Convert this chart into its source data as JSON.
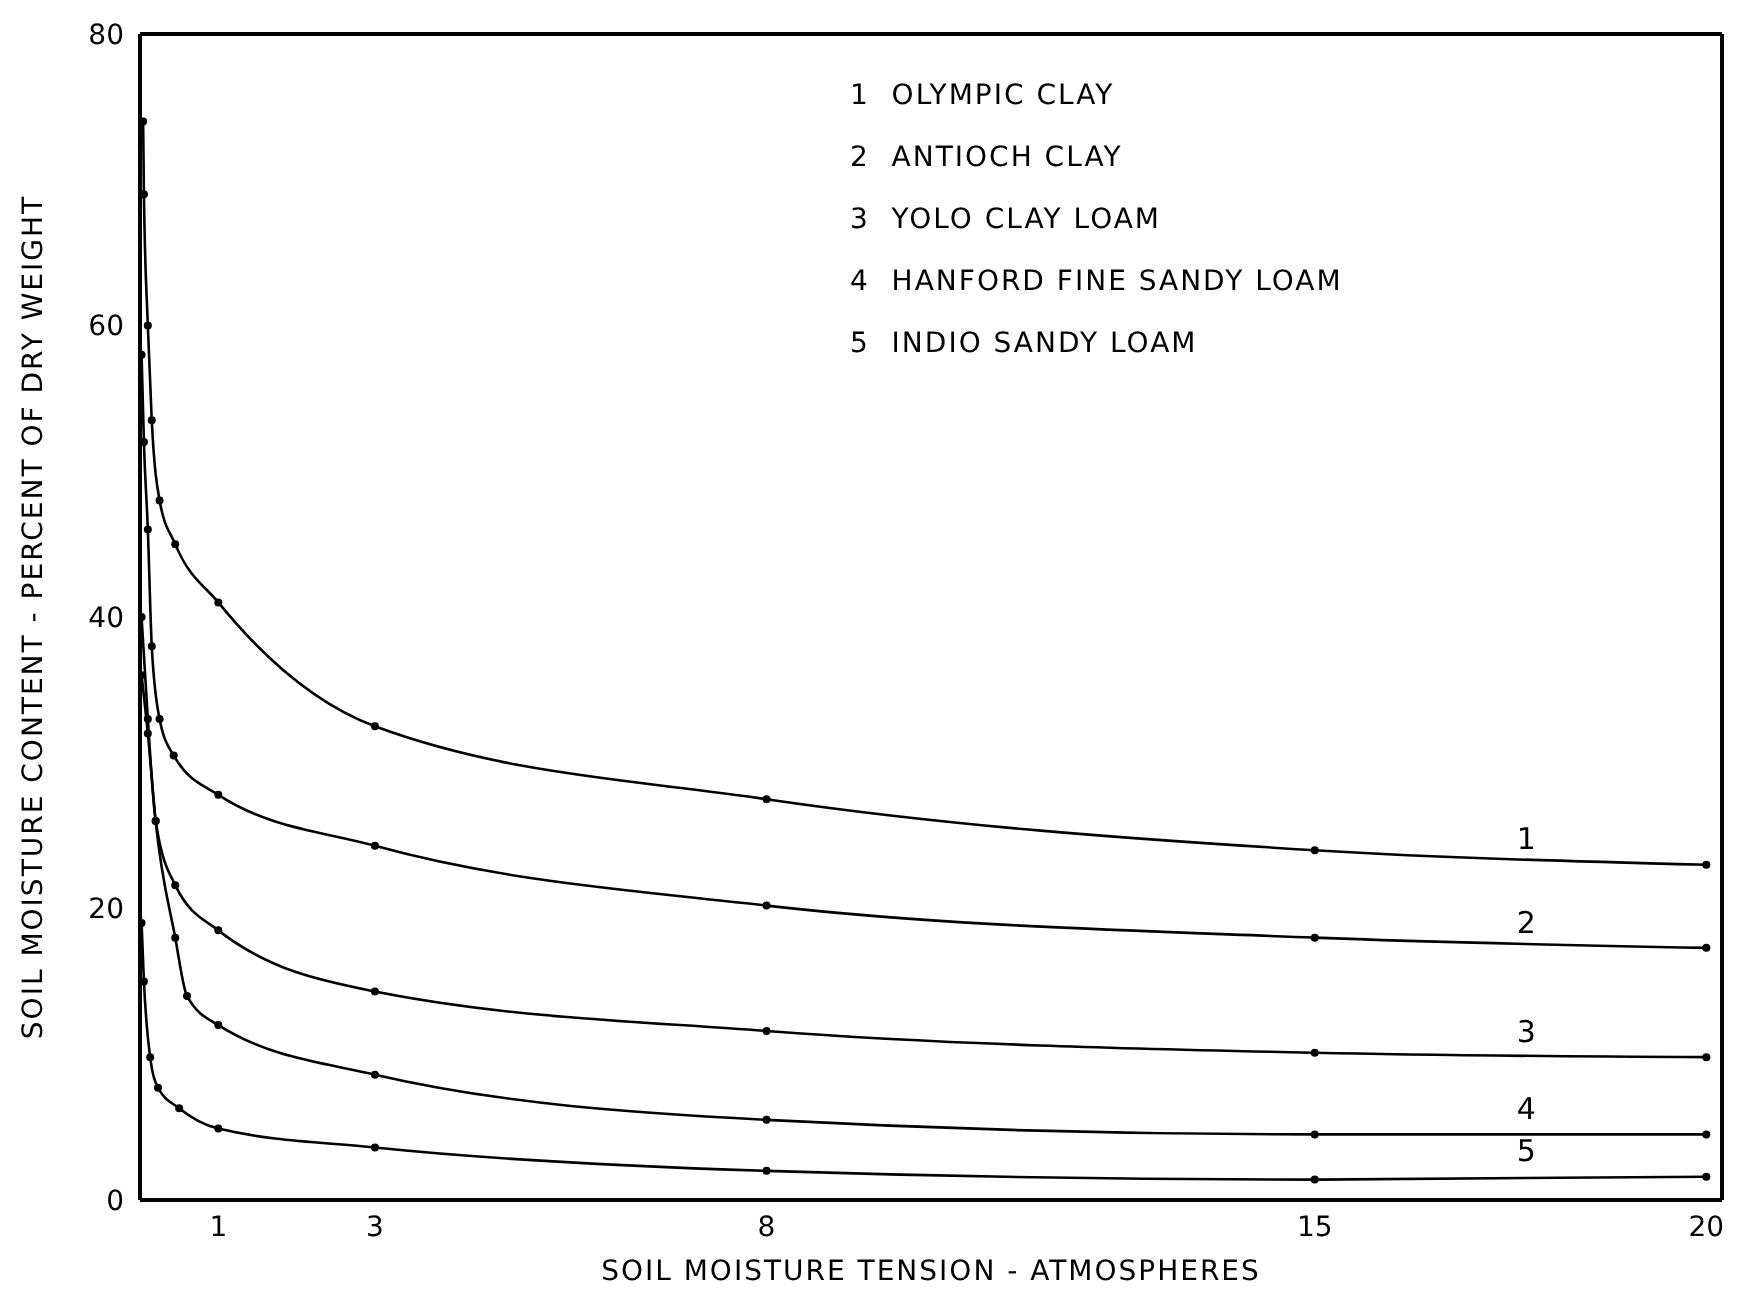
{
  "chart_data": {
    "type": "line",
    "xlabel": "SOIL MOISTURE TENSION - ATMOSPHERES",
    "ylabel": "SOIL MOISTURE CONTENT - PERCENT OF DRY WEIGHT",
    "xlim": [
      0,
      20.2
    ],
    "xticks": [
      1,
      3,
      8,
      15,
      20
    ],
    "ylim": [
      0,
      80
    ],
    "yticks": [
      0,
      20,
      40,
      60,
      80
    ],
    "marker": "circle",
    "line_style": "solid",
    "series": [
      {
        "name": "1",
        "color": "#000000",
        "x": [
          0.04,
          0.05,
          0.1,
          0.15,
          0.25,
          0.45,
          1,
          3,
          8,
          15,
          20
        ],
        "values": [
          74,
          69,
          60,
          53.5,
          48,
          45,
          41,
          32.5,
          27.5,
          24,
          23
        ]
      },
      {
        "name": "2",
        "color": "#000000",
        "x": [
          0.02,
          0.05,
          0.1,
          0.15,
          0.25,
          0.43,
          1,
          3,
          8,
          15,
          20
        ],
        "values": [
          58,
          52,
          46,
          38,
          33,
          30.5,
          27.8,
          24.3,
          20.2,
          18,
          17.3
        ]
      },
      {
        "name": "3",
        "color": "#000000",
        "x": [
          0.02,
          0.1,
          0.2,
          0.45,
          1,
          3,
          8,
          15,
          20
        ],
        "values": [
          40,
          33,
          26,
          21.6,
          18.5,
          14.3,
          11.6,
          10.1,
          9.8
        ]
      },
      {
        "name": "4",
        "color": "#000000",
        "x": [
          0.02,
          0.1,
          0.2,
          0.45,
          0.6,
          1,
          3,
          8,
          15,
          20
        ],
        "values": [
          36,
          32,
          26,
          18,
          14,
          12,
          8.6,
          5.5,
          4.5,
          4.5
        ]
      },
      {
        "name": "5",
        "color": "#000000",
        "x": [
          0.02,
          0.05,
          0.13,
          0.23,
          0.5,
          1,
          3,
          8,
          15,
          20
        ],
        "values": [
          19,
          15,
          9.8,
          7.7,
          6.3,
          4.9,
          3.6,
          2,
          1.4,
          1.6
        ]
      }
    ],
    "annotations": [
      "1  OLYMPIC CLAY",
      "2  ANTIOCH CLAY",
      "3  YOLO CLAY LOAM",
      "4  HANFORD FINE SANDY LOAM",
      "5  INDIO SANDY LOAM"
    ]
  }
}
